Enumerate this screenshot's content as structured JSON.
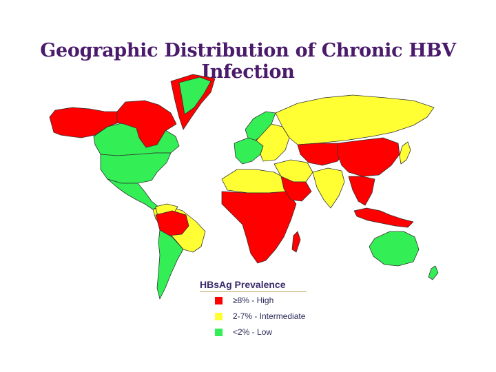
{
  "title": "Geographic Distribution of Chronic HBV Infection",
  "legend": {
    "title": "HBsAg Prevalence",
    "items": [
      {
        "label": "≥8% - High",
        "color": "#ff0000",
        "category": "high"
      },
      {
        "label": "2-7% - Intermediate",
        "color": "#ffff33",
        "category": "intermediate"
      },
      {
        "label": "<2% - Low",
        "color": "#33ee55",
        "category": "low"
      }
    ]
  },
  "colors": {
    "high": "#ff0000",
    "intermediate": "#ffff33",
    "low": "#33ee55",
    "border": "#333333"
  },
  "regions": [
    {
      "name": "alaska-western-canada",
      "category": "high"
    },
    {
      "name": "canada",
      "category": "low"
    },
    {
      "name": "canadian-arctic",
      "category": "high"
    },
    {
      "name": "greenland",
      "category": "high"
    },
    {
      "name": "greenland-interior",
      "category": "low"
    },
    {
      "name": "usa",
      "category": "low"
    },
    {
      "name": "mexico-central-america",
      "category": "low"
    },
    {
      "name": "northern-south-america",
      "category": "intermediate"
    },
    {
      "name": "amazon-basin",
      "category": "high"
    },
    {
      "name": "southern-south-america",
      "category": "low"
    },
    {
      "name": "south-america-intermediate",
      "category": "intermediate"
    },
    {
      "name": "western-europe",
      "category": "low"
    },
    {
      "name": "scandinavia",
      "category": "low"
    },
    {
      "name": "eastern-europe",
      "category": "intermediate"
    },
    {
      "name": "russia",
      "category": "intermediate"
    },
    {
      "name": "north-africa",
      "category": "intermediate"
    },
    {
      "name": "sub-saharan-africa",
      "category": "high"
    },
    {
      "name": "middle-east",
      "category": "intermediate"
    },
    {
      "name": "arabian-peninsula",
      "category": "high"
    },
    {
      "name": "central-asia",
      "category": "high"
    },
    {
      "name": "india",
      "category": "intermediate"
    },
    {
      "name": "china",
      "category": "high"
    },
    {
      "name": "southeast-asia",
      "category": "high"
    },
    {
      "name": "japan",
      "category": "intermediate"
    },
    {
      "name": "indonesia",
      "category": "high"
    },
    {
      "name": "australia",
      "category": "low"
    },
    {
      "name": "madagascar",
      "category": "high"
    },
    {
      "name": "new-zealand",
      "category": "low"
    }
  ]
}
